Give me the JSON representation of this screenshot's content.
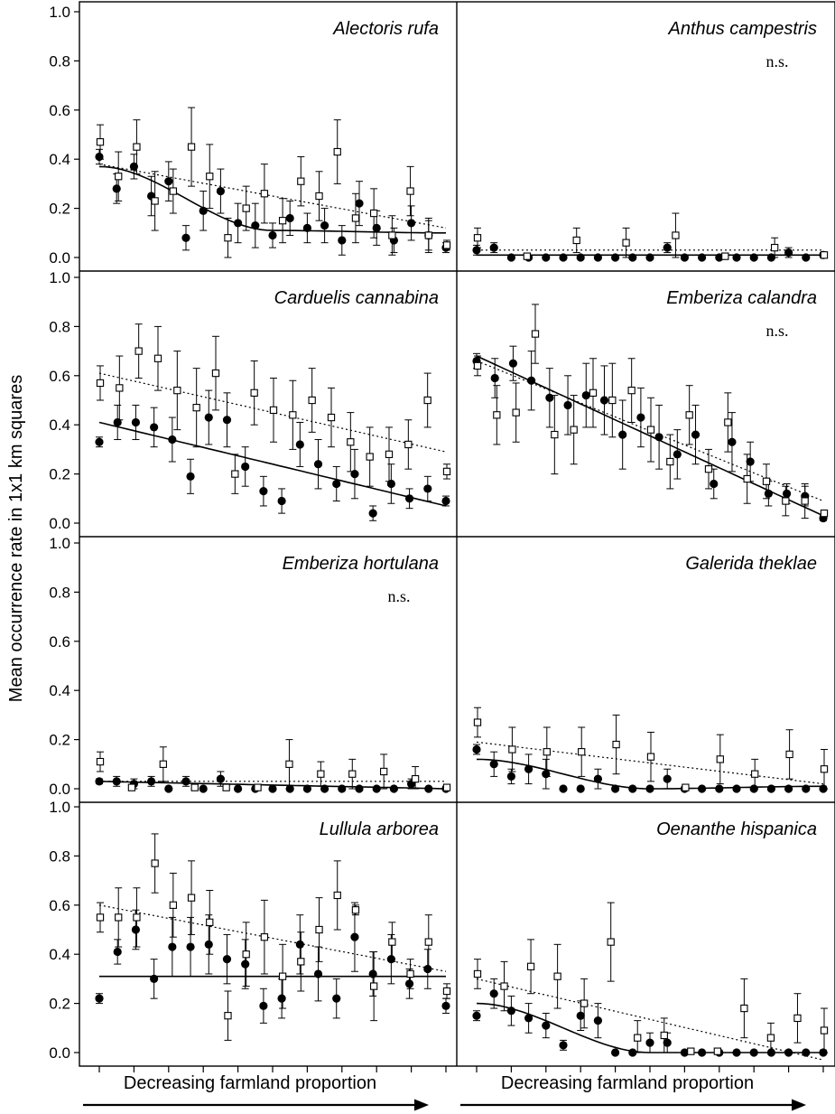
{
  "ylabel": "Mean occurrence rate in 1x1 km squares",
  "xlabel": "Decreasing farmland proportion",
  "ns_label": "n.s.",
  "y_ticks": [
    "0.0",
    "0.2",
    "0.4",
    "0.6",
    "0.8",
    "1.0"
  ],
  "colors": {
    "ink": "#000000",
    "paper": "#ffffff"
  },
  "chart_data": [
    {
      "type": "scatter",
      "title": "Alectoris rufa",
      "ns": false,
      "ylim": [
        0,
        1
      ],
      "x": [
        1,
        2,
        3,
        4,
        5,
        6,
        7,
        8,
        9,
        10,
        11,
        12,
        13,
        14,
        15,
        16,
        17,
        18,
        19,
        20,
        21
      ],
      "series": [
        {
          "marker": "filled-circle",
          "values": [
            0.41,
            0.28,
            0.37,
            0.25,
            0.31,
            0.08,
            0.19,
            0.27,
            0.14,
            0.13,
            0.09,
            0.16,
            0.12,
            0.13,
            0.07,
            0.22,
            0.12,
            0.07,
            0.14,
            0.09,
            0.04
          ],
          "errors": [
            0.03,
            0.06,
            0.05,
            0.08,
            0.08,
            0.05,
            0.08,
            0.09,
            0.08,
            0.09,
            0.05,
            0.07,
            0.06,
            0.07,
            0.06,
            0.09,
            0.07,
            0.05,
            0.07,
            0.06,
            0.02
          ],
          "trend": [
            0.37,
            0.11,
            0.1
          ]
        },
        {
          "marker": "open-square",
          "values": [
            0.47,
            0.33,
            0.45,
            0.23,
            0.27,
            0.45,
            0.33,
            0.08,
            0.2,
            0.26,
            0.15,
            0.31,
            0.25,
            0.43,
            0.16,
            0.18,
            0.09,
            0.27,
            0.09,
            0.05
          ],
          "errors": [
            0.07,
            0.1,
            0.11,
            0.12,
            0.09,
            0.16,
            0.13,
            0.08,
            0.09,
            0.12,
            0.09,
            0.1,
            0.1,
            0.13,
            0.1,
            0.1,
            0.08,
            0.1,
            0.07,
            0.02
          ],
          "trend": [
            0.38,
            0.12
          ]
        }
      ]
    },
    {
      "type": "scatter",
      "title": "Anthus campestris",
      "ns": true,
      "ylim": [
        0,
        1
      ],
      "x": [
        1,
        2,
        3,
        4,
        5,
        6,
        7,
        8,
        9,
        10,
        11,
        12,
        13,
        14,
        15,
        16,
        17,
        18,
        19,
        20,
        21
      ],
      "series": [
        {
          "marker": "filled-circle",
          "values": [
            0.03,
            0.04,
            0,
            0,
            0,
            0,
            0,
            0,
            0,
            0,
            0,
            0.04,
            0,
            0,
            0,
            0,
            0,
            0,
            0.02,
            0,
            0.01
          ],
          "errors": [
            0.02,
            0.02,
            0,
            0,
            0,
            0,
            0,
            0,
            0,
            0,
            0,
            0.02,
            0,
            0,
            0,
            0,
            0,
            0,
            0.02,
            0,
            0.01
          ],
          "trend": [
            0.01,
            0.01
          ]
        },
        {
          "marker": "open-square",
          "values": [
            0.08,
            0.005,
            0.07,
            0.06,
            0.09,
            0.005,
            0.04,
            0.01
          ],
          "errors": [
            0.04,
            0.01,
            0.05,
            0.06,
            0.09,
            0.01,
            0.04,
            0.01
          ],
          "trend": [
            0.03,
            0.03
          ]
        }
      ]
    },
    {
      "type": "scatter",
      "title": "Carduelis cannabina",
      "ns": false,
      "ylim": [
        0,
        1
      ],
      "x": [
        1,
        2,
        3,
        4,
        5,
        6,
        7,
        8,
        9,
        10,
        11,
        12,
        13,
        14,
        15,
        16,
        17,
        18,
        19,
        20,
        21
      ],
      "series": [
        {
          "marker": "filled-circle",
          "values": [
            0.33,
            0.41,
            0.41,
            0.39,
            0.34,
            0.19,
            0.43,
            0.42,
            0.23,
            0.13,
            0.09,
            0.32,
            0.24,
            0.16,
            0.2,
            0.04,
            0.16,
            0.1,
            0.14,
            0.09
          ],
          "errors": [
            0.02,
            0.07,
            0.07,
            0.08,
            0.09,
            0.07,
            0.11,
            0.11,
            0.08,
            0.06,
            0.05,
            0.09,
            0.1,
            0.07,
            0.1,
            0.03,
            0.08,
            0.04,
            0.05,
            0.02
          ],
          "trend": [
            0.41,
            0.07
          ]
        },
        {
          "marker": "open-square",
          "values": [
            0.57,
            0.55,
            0.7,
            0.67,
            0.54,
            0.47,
            0.61,
            0.2,
            0.53,
            0.46,
            0.44,
            0.5,
            0.43,
            0.33,
            0.27,
            0.28,
            0.32,
            0.5,
            0.21
          ],
          "errors": [
            0.07,
            0.13,
            0.11,
            0.13,
            0.16,
            0.16,
            0.15,
            0.08,
            0.13,
            0.13,
            0.14,
            0.13,
            0.12,
            0.12,
            0.12,
            0.11,
            0.1,
            0.11,
            0.03
          ],
          "trend": [
            0.61,
            0.29
          ]
        }
      ]
    },
    {
      "type": "scatter",
      "title": "Emberiza calandra",
      "ns": true,
      "ylim": [
        0,
        1
      ],
      "x": [
        1,
        2,
        3,
        4,
        5,
        6,
        7,
        8,
        9,
        10,
        11,
        12,
        13,
        14,
        15,
        16,
        17,
        18,
        19,
        20,
        21
      ],
      "series": [
        {
          "marker": "filled-circle",
          "values": [
            0.66,
            0.59,
            0.65,
            0.58,
            0.51,
            0.48,
            0.52,
            0.5,
            0.36,
            0.43,
            0.35,
            0.28,
            0.36,
            0.16,
            0.33,
            0.25,
            0.12,
            0.12,
            0.11,
            0.02
          ],
          "errors": [
            0.03,
            0.08,
            0.07,
            0.12,
            0.12,
            0.12,
            0.13,
            0.14,
            0.14,
            0.12,
            0.13,
            0.1,
            0.12,
            0.06,
            0.12,
            0.08,
            0.05,
            0.04,
            0.04,
            0.01
          ],
          "trend": [
            0.68,
            0.03
          ]
        },
        {
          "marker": "open-square",
          "values": [
            0.64,
            0.44,
            0.45,
            0.77,
            0.36,
            0.38,
            0.53,
            0.5,
            0.54,
            0.38,
            0.25,
            0.44,
            0.22,
            0.41,
            0.18,
            0.17,
            0.09,
            0.09,
            0.04
          ],
          "errors": [
            0.04,
            0.12,
            0.12,
            0.12,
            0.16,
            0.14,
            0.14,
            0.15,
            0.13,
            0.13,
            0.11,
            0.12,
            0.08,
            0.12,
            0.1,
            0.07,
            0.06,
            0.07,
            0.01
          ],
          "trend": [
            0.66,
            0.09
          ]
        }
      ]
    },
    {
      "type": "scatter",
      "title": "Emberiza hortulana",
      "ns": true,
      "ylim": [
        0,
        1
      ],
      "x": [
        1,
        2,
        3,
        4,
        5,
        6,
        7,
        8,
        9,
        10,
        11,
        12,
        13,
        14,
        15,
        16,
        17,
        18,
        19,
        20,
        21
      ],
      "series": [
        {
          "marker": "filled-circle",
          "values": [
            0.03,
            0.03,
            0.02,
            0.03,
            0,
            0.03,
            0,
            0.04,
            0,
            0,
            0,
            0,
            0,
            0,
            0,
            0,
            0,
            0,
            0.02,
            0,
            0
          ],
          "errors": [
            0.01,
            0.02,
            0.02,
            0.02,
            0,
            0.02,
            0,
            0.03,
            0,
            0,
            0,
            0,
            0,
            0,
            0,
            0,
            0,
            0,
            0.02,
            0,
            0.01
          ],
          "trend": [
            0.03,
            0.0
          ]
        },
        {
          "marker": "open-square",
          "values": [
            0.11,
            0.005,
            0.1,
            0.005,
            0.005,
            0.005,
            0.1,
            0.06,
            0.06,
            0.07,
            0.04,
            0.005
          ],
          "errors": [
            0.04,
            0.01,
            0.07,
            0.01,
            0.01,
            0.01,
            0.1,
            0.05,
            0.06,
            0.07,
            0.05,
            0.01
          ],
          "trend": [
            0.03,
            0.03
          ]
        }
      ]
    },
    {
      "type": "scatter",
      "title": "Galerida theklae",
      "ns": false,
      "ylim": [
        0,
        1
      ],
      "x": [
        1,
        2,
        3,
        4,
        5,
        6,
        7,
        8,
        9,
        10,
        11,
        12,
        13,
        14,
        15,
        16,
        17,
        18,
        19,
        20,
        21
      ],
      "series": [
        {
          "marker": "filled-circle",
          "values": [
            0.16,
            0.1,
            0.05,
            0.08,
            0.06,
            0,
            0,
            0.04,
            0,
            0,
            0,
            0.04,
            0,
            0,
            0,
            0,
            0,
            0,
            0,
            0,
            0
          ],
          "errors": [
            0.02,
            0.05,
            0.03,
            0.06,
            0.06,
            0,
            0,
            0.04,
            0,
            0,
            0,
            0.04,
            0,
            0,
            0,
            0,
            0,
            0,
            0,
            0,
            0.01
          ],
          "trend": [
            0.12,
            0.0,
            0.01
          ]
        },
        {
          "marker": "open-square",
          "values": [
            0.27,
            0.16,
            0.15,
            0.15,
            0.18,
            0.13,
            0.005,
            0.12,
            0.06,
            0.14,
            0.08
          ],
          "errors": [
            0.06,
            0.09,
            0.1,
            0.1,
            0.12,
            0.1,
            0.01,
            0.1,
            0.06,
            0.1,
            0.08
          ],
          "trend": [
            0.19,
            0.02
          ]
        }
      ]
    },
    {
      "type": "scatter",
      "title": "Lullula arborea",
      "ns": false,
      "ylim": [
        0,
        1
      ],
      "x": [
        1,
        2,
        3,
        4,
        5,
        6,
        7,
        8,
        9,
        10,
        11,
        12,
        13,
        14,
        15,
        16,
        17,
        18,
        19,
        20,
        21
      ],
      "series": [
        {
          "marker": "filled-circle",
          "values": [
            0.22,
            0.41,
            0.5,
            0.3,
            0.43,
            0.43,
            0.44,
            0.38,
            0.36,
            0.19,
            0.22,
            0.44,
            0.32,
            0.22,
            0.47,
            0.32,
            0.38,
            0.28,
            0.34,
            0.19
          ],
          "errors": [
            0.02,
            0.05,
            0.08,
            0.08,
            0.12,
            0.12,
            0.12,
            0.1,
            0.1,
            0.07,
            0.08,
            0.12,
            0.11,
            0.08,
            0.14,
            0.09,
            0.1,
            0.06,
            0.08,
            0.03
          ],
          "trend": [
            0.31,
            0.31
          ]
        },
        {
          "marker": "open-square",
          "values": [
            0.55,
            0.55,
            0.55,
            0.77,
            0.6,
            0.63,
            0.53,
            0.15,
            0.4,
            0.47,
            0.31,
            0.37,
            0.5,
            0.64,
            0.58,
            0.27,
            0.45,
            0.32,
            0.45,
            0.25
          ],
          "errors": [
            0.06,
            0.12,
            0.12,
            0.12,
            0.13,
            0.15,
            0.13,
            0.1,
            0.13,
            0.15,
            0.13,
            0.12,
            0.13,
            0.14,
            0.02,
            0.14,
            0.08,
            0.06,
            0.11,
            0.03
          ],
          "trend": [
            0.6,
            0.33
          ]
        }
      ]
    },
    {
      "type": "scatter",
      "title": "Oenanthe hispanica",
      "ns": false,
      "ylim": [
        0,
        1
      ],
      "x": [
        1,
        2,
        3,
        4,
        5,
        6,
        7,
        8,
        9,
        10,
        11,
        12,
        13,
        14,
        15,
        16,
        17,
        18,
        19,
        20,
        21
      ],
      "series": [
        {
          "marker": "filled-circle",
          "values": [
            0.15,
            0.24,
            0.17,
            0.14,
            0.11,
            0.03,
            0.15,
            0.13,
            0,
            0,
            0.04,
            0.04,
            0,
            0,
            0,
            0,
            0,
            0,
            0,
            0,
            0
          ],
          "errors": [
            0.02,
            0.06,
            0.06,
            0.06,
            0.05,
            0.02,
            0.06,
            0.07,
            0,
            0,
            0.04,
            0.04,
            0,
            0,
            0,
            0,
            0,
            0,
            0,
            0,
            0.01
          ],
          "trend": [
            0.2,
            0.0,
            0.0
          ]
        },
        {
          "marker": "open-square",
          "values": [
            0.32,
            0.27,
            0.35,
            0.31,
            0.2,
            0.45,
            0.06,
            0.07,
            0.005,
            0.005,
            0.18,
            0.06,
            0.14,
            0.09
          ],
          "errors": [
            0.06,
            0.1,
            0.11,
            0.13,
            0.1,
            0.16,
            0.07,
            0.07,
            0.01,
            0.01,
            0.12,
            0.06,
            0.1,
            0.09
          ],
          "trend": [
            0.3,
            -0.03
          ]
        }
      ]
    }
  ]
}
